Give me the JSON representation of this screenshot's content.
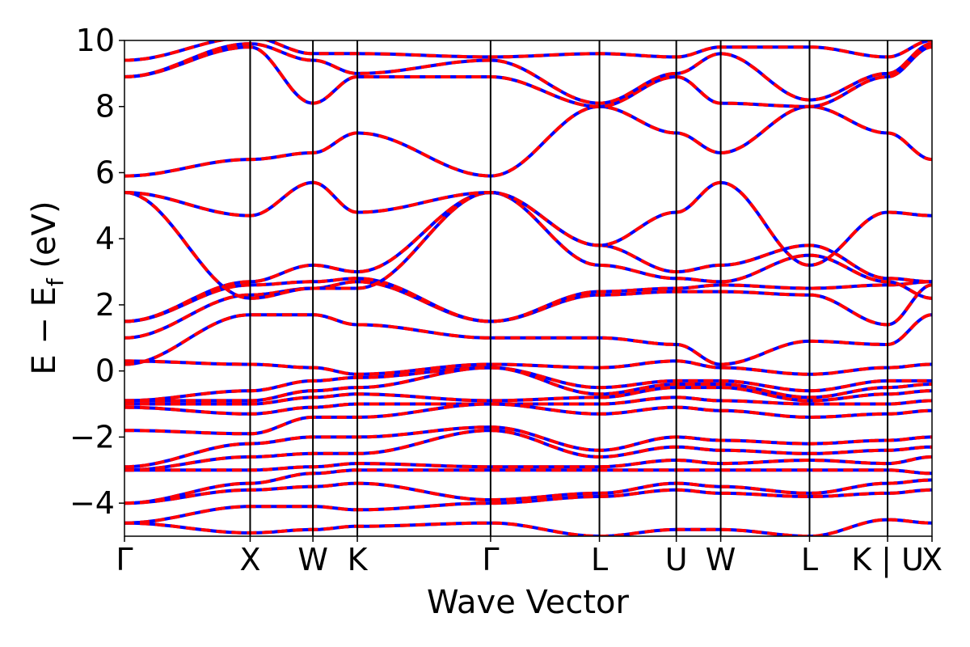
{
  "chart_data": {
    "type": "line",
    "title": "",
    "xlabel": "Wave Vector",
    "ylabel": "E − E_f (eV)",
    "ylabel_parts": {
      "main": "E  −  E",
      "sub": "f",
      "unit": " (eV)"
    },
    "ylim": [
      -5,
      10
    ],
    "yticks": [
      -4,
      -2,
      0,
      2,
      4,
      6,
      8,
      10
    ],
    "ytick_labels": [
      "−4",
      "−2",
      "0",
      "2",
      "4",
      "6",
      "8",
      "10"
    ],
    "kpoint_positions": [
      0,
      1.061,
      1.591,
      1.966,
      3.091,
      4.01,
      4.659,
      5.034,
      5.784,
      6.443,
      6.818
    ],
    "kpoint_labels": [
      "Γ",
      "X",
      "W",
      "K",
      "Γ",
      "L",
      "U",
      "W",
      "L",
      "K | U",
      "X"
    ],
    "xlim": [
      0,
      6.818
    ],
    "grid": false,
    "series": [
      {
        "color": "#0000ff",
        "style": "solid"
      },
      {
        "color": "#ff0000",
        "style": "dashed"
      }
    ],
    "bands": [
      [
        0.3,
        0.2,
        0.1,
        -0.1,
        0.2,
        0.1,
        0.3,
        0.1,
        -0.1,
        0.1,
        0.2
      ],
      [
        -0.9,
        -0.6,
        -0.3,
        -0.2,
        0.1,
        -0.5,
        -0.3,
        -0.3,
        -0.6,
        -0.3,
        -0.3
      ],
      [
        -0.9,
        -0.9,
        -0.6,
        -0.5,
        0.1,
        -0.7,
        -0.4,
        -0.4,
        -0.8,
        -0.5,
        -0.4
      ],
      [
        -1.0,
        -1.0,
        -0.8,
        -0.7,
        -0.9,
        -0.8,
        -0.5,
        -0.5,
        -0.9,
        -0.7,
        -0.6
      ],
      [
        -1.1,
        -1.3,
        -1.1,
        -1.0,
        -1.0,
        -1.0,
        -0.8,
        -0.9,
        -1.0,
        -1.0,
        -0.9
      ],
      [
        -1.8,
        -1.9,
        -1.4,
        -1.4,
        -1.0,
        -1.3,
        -1.1,
        -1.2,
        -1.4,
        -1.3,
        -1.2
      ],
      [
        -2.9,
        -2.2,
        -2.0,
        -2.0,
        -1.7,
        -2.4,
        -2.0,
        -2.1,
        -2.2,
        -2.1,
        -2.0
      ],
      [
        -3.0,
        -2.6,
        -2.5,
        -2.5,
        -1.8,
        -2.6,
        -2.3,
        -2.4,
        -2.5,
        -2.4,
        -2.3
      ],
      [
        -3.0,
        -3.0,
        -2.9,
        -2.8,
        -2.9,
        -2.9,
        -2.7,
        -2.8,
        -2.7,
        -2.8,
        -2.6
      ],
      [
        -4.0,
        -3.4,
        -3.1,
        -3.0,
        -3.0,
        -3.0,
        -3.0,
        -3.0,
        -3.0,
        -3.0,
        -3.1
      ],
      [
        -4.0,
        -3.6,
        -3.5,
        -3.4,
        -3.9,
        -3.7,
        -3.4,
        -3.5,
        -3.7,
        -3.4,
        -3.3
      ],
      [
        -4.6,
        -4.1,
        -4.1,
        -4.2,
        -4.0,
        -3.8,
        -3.6,
        -3.7,
        -3.8,
        -3.7,
        -3.6
      ],
      [
        -4.6,
        -4.9,
        -4.8,
        -4.7,
        -4.6,
        -5.0,
        -4.8,
        -4.8,
        -5.0,
        -4.5,
        -4.6
      ],
      [
        0.2,
        1.7,
        1.7,
        1.4,
        1.0,
        1.0,
        0.8,
        0.2,
        0.9,
        0.8,
        1.7
      ],
      [
        1.0,
        2.3,
        2.5,
        2.7,
        1.5,
        2.3,
        2.4,
        2.4,
        2.3,
        1.4,
        2.6
      ],
      [
        1.5,
        2.6,
        2.7,
        2.8,
        1.5,
        2.4,
        2.5,
        2.6,
        2.5,
        2.6,
        2.7
      ],
      [
        1.5,
        2.7,
        3.2,
        3.0,
        5.4,
        3.2,
        2.8,
        2.7,
        3.5,
        2.7,
        2.2
      ],
      [
        5.4,
        2.2,
        2.5,
        2.5,
        5.4,
        3.8,
        3.0,
        3.2,
        3.8,
        2.8,
        2.7
      ],
      [
        5.4,
        4.7,
        5.7,
        4.8,
        5.4,
        3.8,
        4.8,
        5.7,
        3.2,
        4.8,
        4.7
      ],
      [
        5.9,
        6.4,
        6.6,
        7.2,
        5.9,
        8.0,
        7.2,
        6.6,
        8.0,
        7.2,
        6.4
      ],
      [
        8.9,
        9.8,
        8.1,
        8.9,
        8.9,
        8.0,
        8.9,
        8.1,
        8.0,
        8.9,
        9.8
      ],
      [
        8.9,
        9.9,
        9.4,
        9.0,
        9.4,
        8.1,
        9.0,
        9.6,
        8.2,
        9.0,
        9.9
      ],
      [
        9.4,
        10.1,
        9.6,
        9.6,
        9.5,
        9.6,
        9.5,
        9.8,
        9.8,
        9.5,
        10.0
      ]
    ]
  }
}
